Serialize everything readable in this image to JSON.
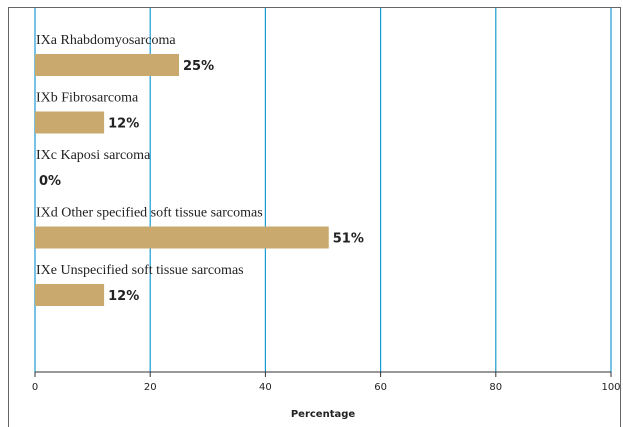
{
  "chart_data": {
    "type": "bar",
    "orientation": "horizontal",
    "categories": [
      "IXa Rhabdomyosarcoma",
      "IXb Fibrosarcoma",
      "IXc Kaposi sarcoma",
      "IXd Other specified soft tissue sarcomas",
      "IXe Unspecified soft tissue sarcomas"
    ],
    "values": [
      25,
      12,
      0,
      51,
      12
    ],
    "value_labels": [
      "25%",
      "12%",
      "0%",
      "51%",
      "12%"
    ],
    "color": "#c9a96e",
    "grid_color": "#1a9ad6",
    "xlim": [
      0,
      100
    ],
    "xticks": [
      0,
      20,
      40,
      60,
      80,
      100
    ],
    "xlabel": "Percentage",
    "grid": true
  }
}
